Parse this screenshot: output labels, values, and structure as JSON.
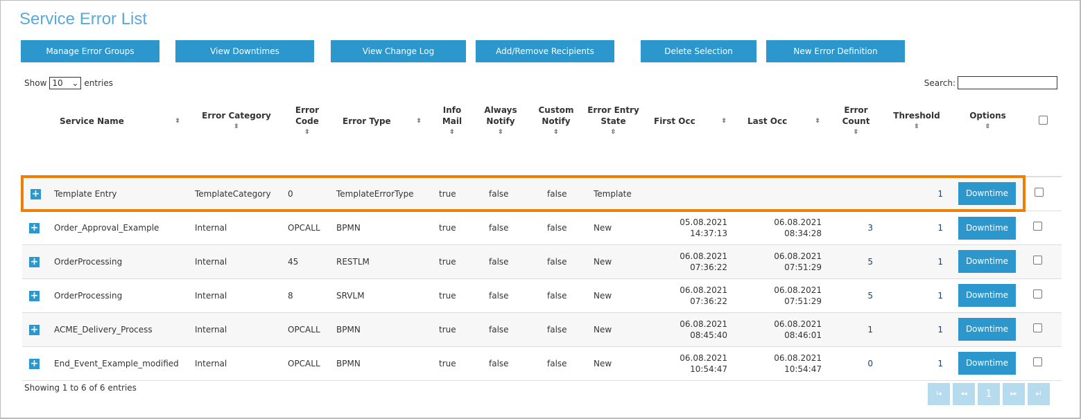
{
  "title": "Service Error List",
  "buttons": [
    "Manage Error Groups",
    "View Downtimes",
    "View Change Log",
    "Add/Remove Recipients",
    "Delete Selection",
    "New Error Definition"
  ],
  "length": {
    "show": "Show",
    "value": "10",
    "entries": "entries"
  },
  "search": {
    "label": "Search:",
    "value": ""
  },
  "columns": [
    "Service Name",
    "Error Category",
    "Error Code",
    "Error Type",
    "Info Mail",
    "Always Notify",
    "Custom Notify",
    "Error Entry State",
    "First Occ",
    "Last Occ",
    "Error Count",
    "Threshold",
    "Options"
  ],
  "rows": [
    {
      "name": "Template Entry",
      "category": "TemplateCategory",
      "code": "0",
      "type": "TemplateErrorType",
      "info": "true",
      "always": "false",
      "custom": "false",
      "state": "Template",
      "first_date": "",
      "first_time": "",
      "last_date": "",
      "last_time": "",
      "count": "",
      "threshold": "1",
      "highlighted": true
    },
    {
      "name": "Order_Approval_Example",
      "category": "Internal",
      "code": "OPCALL",
      "type": "BPMN",
      "info": "true",
      "always": "false",
      "custom": "false",
      "state": "New",
      "first_date": "05.08.2021",
      "first_time": "14:37:13",
      "last_date": "06.08.2021",
      "last_time": "08:34:28",
      "count": "3",
      "threshold": "1"
    },
    {
      "name": "OrderProcessing",
      "category": "Internal",
      "code": "45",
      "type": "RESTLM",
      "info": "true",
      "always": "false",
      "custom": "false",
      "state": "New",
      "first_date": "06.08.2021",
      "first_time": "07:36:22",
      "last_date": "06.08.2021",
      "last_time": "07:51:29",
      "count": "5",
      "threshold": "1"
    },
    {
      "name": "OrderProcessing",
      "category": "Internal",
      "code": "8",
      "type": "SRVLM",
      "info": "true",
      "always": "false",
      "custom": "false",
      "state": "New",
      "first_date": "06.08.2021",
      "first_time": "07:36:22",
      "last_date": "06.08.2021",
      "last_time": "07:51:29",
      "count": "5",
      "threshold": "1"
    },
    {
      "name": "ACME_Delivery_Process",
      "category": "Internal",
      "code": "OPCALL",
      "type": "BPMN",
      "info": "true",
      "always": "false",
      "custom": "false",
      "state": "New",
      "first_date": "06.08.2021",
      "first_time": "08:45:40",
      "last_date": "06.08.2021",
      "last_time": "08:46:01",
      "count": "1",
      "threshold": "1"
    },
    {
      "name": "End_Event_Example_modified",
      "category": "Internal",
      "code": "OPCALL",
      "type": "BPMN",
      "info": "true",
      "always": "false",
      "custom": "false",
      "state": "New",
      "first_date": "06.08.2021",
      "first_time": "10:54:47",
      "last_date": "06.08.2021",
      "last_time": "10:54:47",
      "count": "0",
      "threshold": "1"
    }
  ],
  "row_button": "Downtime",
  "footer_info": "Showing 1 to 6 of 6 entries",
  "pager": {
    "first": "I◂",
    "prev": "◂◂",
    "page": "1",
    "next": "▸▸",
    "last": "▸I"
  },
  "colors": {
    "accent": "#2b97cd",
    "highlight": "#ef7d00",
    "title": "#5aa9dc"
  }
}
